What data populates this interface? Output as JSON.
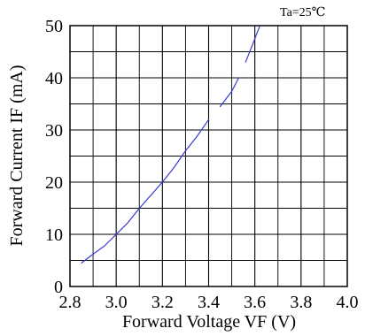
{
  "chart_data": {
    "type": "line",
    "title": "",
    "annotation": "Ta=25℃",
    "xlabel": "Forward Voltage  VF (V)",
    "ylabel": "Forward Current IF (mA)",
    "xlim": [
      2.8,
      4.0
    ],
    "ylim": [
      0,
      50
    ],
    "xticks": [
      "2.8",
      "3.0",
      "3.2",
      "3.4",
      "3.6",
      "3.8",
      "4.0"
    ],
    "yticks": [
      "0",
      "10",
      "20",
      "30",
      "40",
      "50"
    ],
    "minor_x_step": 0.1,
    "minor_y_step": 5,
    "grid": true,
    "line_color": "#3b3bd6",
    "series": [
      {
        "segments": [
          [
            [
              2.85,
              4.5
            ],
            [
              2.9,
              6.2
            ],
            [
              2.95,
              7.8
            ],
            [
              3.0,
              10.0
            ],
            [
              3.05,
              12.2
            ],
            [
              3.1,
              15.0
            ],
            [
              3.15,
              17.5
            ],
            [
              3.2,
              20.0
            ],
            [
              3.25,
              22.8
            ],
            [
              3.3,
              26.0
            ]
          ],
          [
            [
              3.3,
              26.0
            ],
            [
              3.35,
              28.8
            ],
            [
              3.4,
              32.0
            ]
          ],
          [
            [
              3.45,
              34.5
            ],
            [
              3.5,
              37.4
            ],
            [
              3.53,
              40.0
            ]
          ],
          [
            [
              3.56,
              43.0
            ],
            [
              3.6,
              47.5
            ],
            [
              3.62,
              49.8
            ]
          ]
        ]
      }
    ]
  }
}
